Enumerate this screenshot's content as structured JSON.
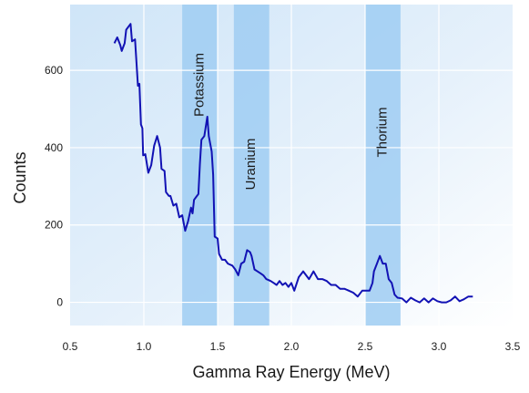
{
  "chart_data": {
    "type": "line",
    "title": "",
    "xlabel": "Gamma Ray Energy (MeV)",
    "ylabel": "Counts",
    "xlim": [
      0.5,
      3.5
    ],
    "ylim": [
      -60,
      770
    ],
    "x_ticks": [
      0.5,
      1.0,
      1.5,
      2.0,
      2.5,
      3.0,
      3.5
    ],
    "x_tick_labels": [
      "0.5",
      "1.0",
      "1.5",
      "2.0",
      "2.5",
      "3.0",
      "3.5"
    ],
    "y_ticks": [
      0,
      200,
      400,
      600
    ],
    "y_tick_labels": [
      "0",
      "200",
      "400",
      "600"
    ],
    "grid": true,
    "legend": "none",
    "bands": [
      {
        "label": "Potassium",
        "x_range": [
          1.26,
          1.5
        ]
      },
      {
        "label": "Uranium",
        "x_range": [
          1.61,
          1.85
        ]
      },
      {
        "label": "Thorium",
        "x_range": [
          2.5,
          2.74
        ]
      }
    ],
    "series": [
      {
        "color": "#1212b4",
        "points": [
          [
            0.8,
            670
          ],
          [
            0.82,
            685
          ],
          [
            0.84,
            665
          ],
          [
            0.85,
            650
          ],
          [
            0.87,
            670
          ],
          [
            0.88,
            705
          ],
          [
            0.91,
            720
          ],
          [
            0.92,
            675
          ],
          [
            0.94,
            680
          ],
          [
            0.96,
            560
          ],
          [
            0.97,
            565
          ],
          [
            0.98,
            460
          ],
          [
            0.99,
            450
          ],
          [
            0.995,
            380
          ],
          [
            1.01,
            383
          ],
          [
            1.03,
            335
          ],
          [
            1.05,
            355
          ],
          [
            1.07,
            405
          ],
          [
            1.09,
            430
          ],
          [
            1.11,
            400
          ],
          [
            1.12,
            345
          ],
          [
            1.14,
            340
          ],
          [
            1.15,
            285
          ],
          [
            1.17,
            275
          ],
          [
            1.18,
            275
          ],
          [
            1.2,
            250
          ],
          [
            1.22,
            255
          ],
          [
            1.24,
            220
          ],
          [
            1.26,
            225
          ],
          [
            1.28,
            185
          ],
          [
            1.3,
            210
          ],
          [
            1.32,
            245
          ],
          [
            1.33,
            230
          ],
          [
            1.34,
            265
          ],
          [
            1.36,
            275
          ],
          [
            1.37,
            280
          ],
          [
            1.38,
            360
          ],
          [
            1.39,
            420
          ],
          [
            1.41,
            430
          ],
          [
            1.43,
            480
          ],
          [
            1.44,
            430
          ],
          [
            1.46,
            390
          ],
          [
            1.47,
            330
          ],
          [
            1.48,
            170
          ],
          [
            1.5,
            165
          ],
          [
            1.51,
            125
          ],
          [
            1.53,
            110
          ],
          [
            1.55,
            110
          ],
          [
            1.57,
            100
          ],
          [
            1.6,
            95
          ],
          [
            1.62,
            85
          ],
          [
            1.64,
            70
          ],
          [
            1.66,
            100
          ],
          [
            1.68,
            105
          ],
          [
            1.7,
            135
          ],
          [
            1.72,
            130
          ],
          [
            1.73,
            120
          ],
          [
            1.75,
            85
          ],
          [
            1.77,
            80
          ],
          [
            1.79,
            75
          ],
          [
            1.81,
            70
          ],
          [
            1.83,
            60
          ],
          [
            1.86,
            55
          ],
          [
            1.88,
            50
          ],
          [
            1.9,
            45
          ],
          [
            1.92,
            55
          ],
          [
            1.94,
            45
          ],
          [
            1.96,
            50
          ],
          [
            1.98,
            40
          ],
          [
            2.0,
            50
          ],
          [
            2.02,
            30
          ],
          [
            2.05,
            65
          ],
          [
            2.08,
            80
          ],
          [
            2.1,
            70
          ],
          [
            2.12,
            60
          ],
          [
            2.15,
            80
          ],
          [
            2.18,
            60
          ],
          [
            2.21,
            60
          ],
          [
            2.24,
            55
          ],
          [
            2.27,
            45
          ],
          [
            2.3,
            45
          ],
          [
            2.33,
            35
          ],
          [
            2.36,
            35
          ],
          [
            2.39,
            30
          ],
          [
            2.42,
            25
          ],
          [
            2.45,
            15
          ],
          [
            2.48,
            30
          ],
          [
            2.5,
            30
          ],
          [
            2.53,
            30
          ],
          [
            2.55,
            50
          ],
          [
            2.56,
            80
          ],
          [
            2.58,
            100
          ],
          [
            2.6,
            120
          ],
          [
            2.62,
            100
          ],
          [
            2.64,
            100
          ],
          [
            2.65,
            80
          ],
          [
            2.66,
            60
          ],
          [
            2.68,
            50
          ],
          [
            2.7,
            20
          ],
          [
            2.72,
            12
          ],
          [
            2.75,
            10
          ],
          [
            2.78,
            0
          ],
          [
            2.81,
            12
          ],
          [
            2.84,
            5
          ],
          [
            2.87,
            0
          ],
          [
            2.9,
            10
          ],
          [
            2.93,
            0
          ],
          [
            2.96,
            10
          ],
          [
            2.99,
            3
          ],
          [
            3.02,
            0
          ],
          [
            3.05,
            0
          ],
          [
            3.08,
            5
          ],
          [
            3.11,
            15
          ],
          [
            3.14,
            3
          ],
          [
            3.17,
            8
          ],
          [
            3.2,
            15
          ],
          [
            3.23,
            15
          ]
        ]
      }
    ]
  }
}
